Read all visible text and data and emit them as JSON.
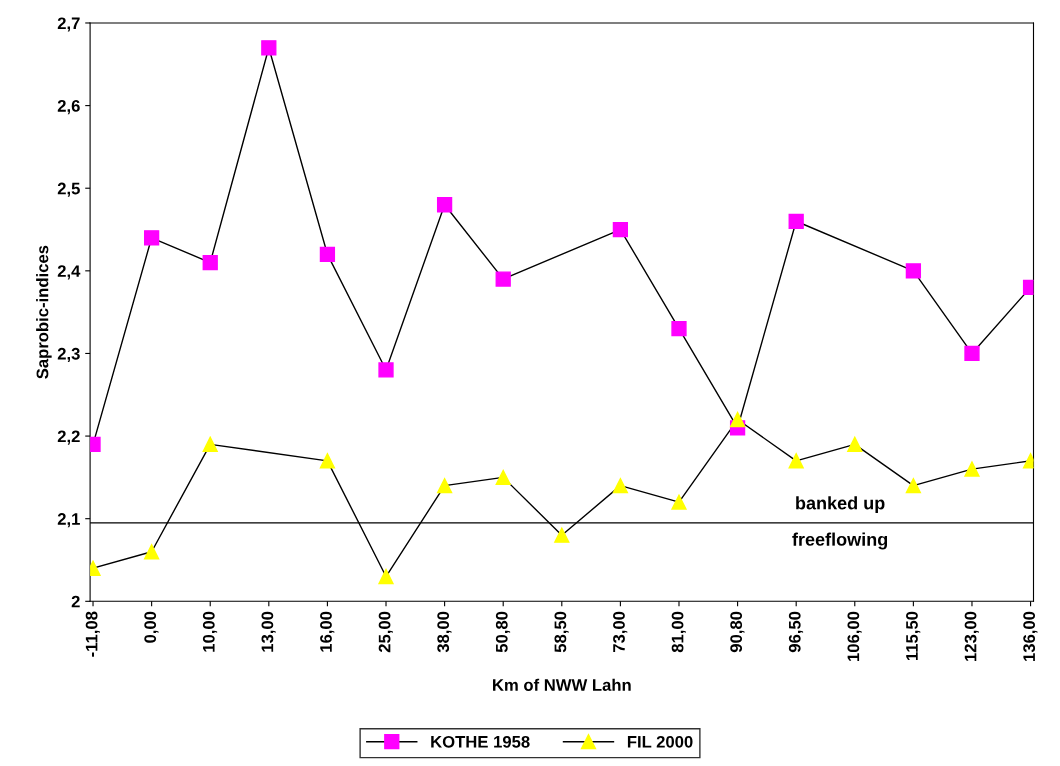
{
  "chart_data": {
    "type": "line",
    "xlabel": "Km of NWW Lahn",
    "ylabel": "Saprobic-indices",
    "categories": [
      "-11,08",
      "0,00",
      "10,00",
      "13,00",
      "16,00",
      "25,00",
      "38,00",
      "50,80",
      "58,50",
      "73,00",
      "81,00",
      "90,80",
      "96,50",
      "106,00",
      "115,50",
      "123,00",
      "136,00"
    ],
    "series": [
      {
        "name": "KOTHE 1958",
        "color": "#ff00ff",
        "marker": "square",
        "values": [
          2.19,
          2.44,
          2.41,
          2.67,
          2.42,
          2.28,
          2.48,
          2.39,
          null,
          2.45,
          2.33,
          2.21,
          2.46,
          null,
          2.4,
          2.3,
          2.38
        ]
      },
      {
        "name": "FIL 2000",
        "color": "#ffff00",
        "marker": "triangle",
        "values": [
          2.04,
          2.06,
          2.19,
          null,
          2.17,
          2.03,
          2.14,
          2.15,
          2.08,
          2.14,
          2.12,
          2.22,
          2.17,
          2.19,
          2.14,
          2.16,
          2.17
        ]
      }
    ],
    "ylim": [
      2,
      2.7
    ],
    "yticks": [
      {
        "value": 2,
        "label": "2"
      },
      {
        "value": 2.1,
        "label": "2,1"
      },
      {
        "value": 2.2,
        "label": "2,2"
      },
      {
        "value": 2.3,
        "label": "2,3"
      },
      {
        "value": 2.4,
        "label": "2,4"
      },
      {
        "value": 2.5,
        "label": "2,5"
      },
      {
        "value": 2.6,
        "label": "2,6"
      },
      {
        "value": 2.7,
        "label": "2,7"
      }
    ],
    "ref_lines": [
      {
        "axis": "y",
        "value": 2.095,
        "color": "#000000"
      }
    ],
    "annotations": [
      "banked up",
      "freeflowing"
    ],
    "legend": "bottom",
    "grid": false,
    "line_style": "solid"
  }
}
